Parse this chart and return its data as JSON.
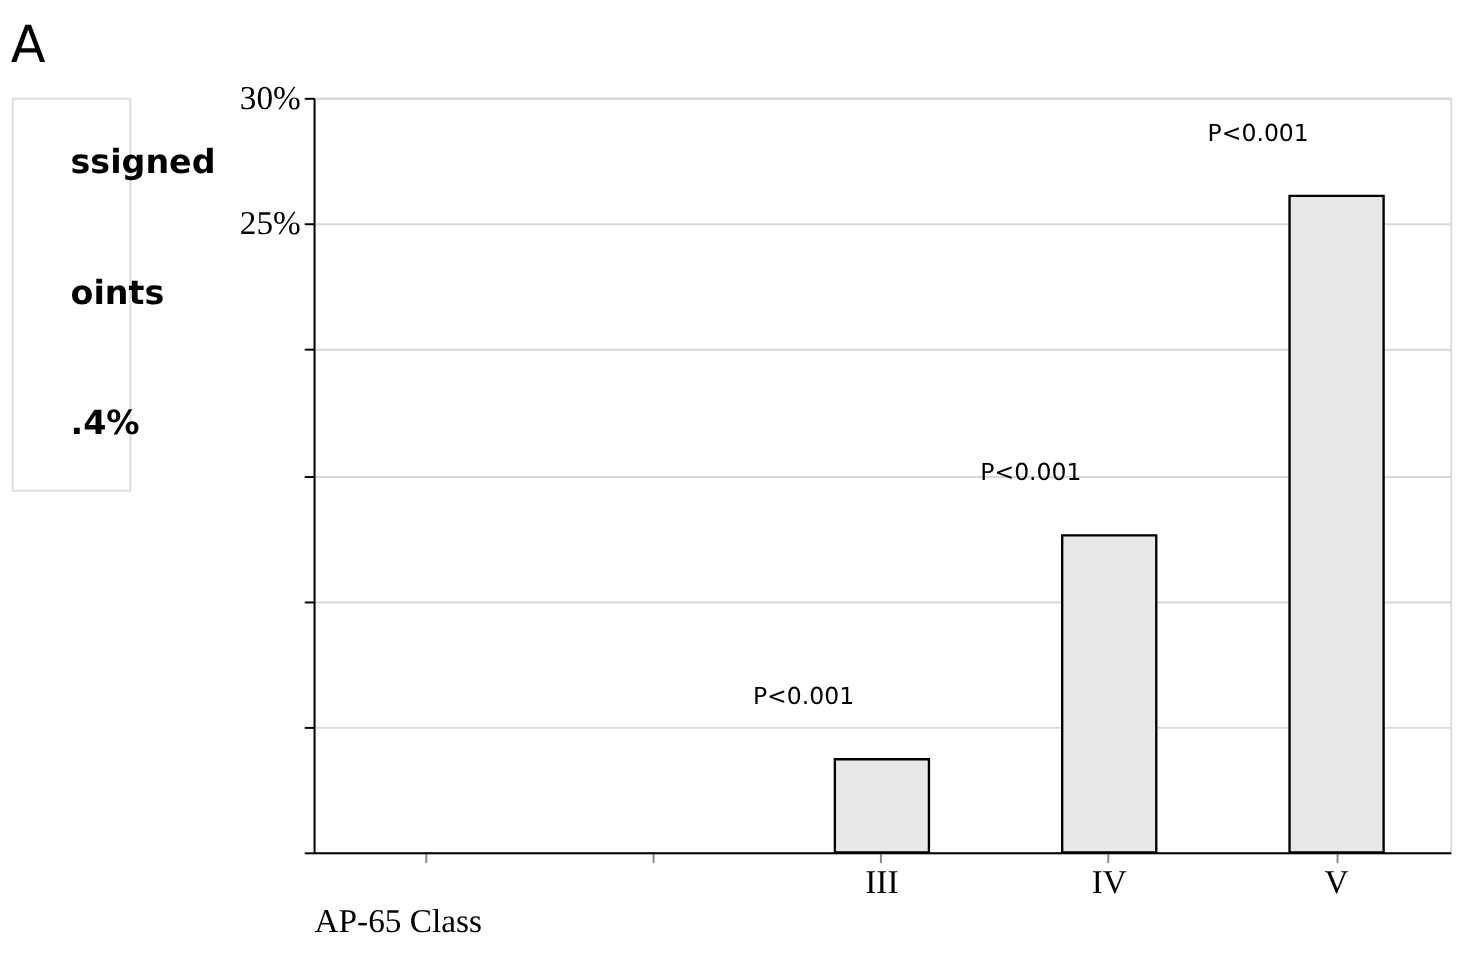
{
  "chart_data": {
    "type": "bar",
    "title": "A",
    "xlabel": "AP-65 Class",
    "categories": [
      null,
      null,
      "III",
      "IV",
      "V"
    ],
    "values": [
      null,
      null,
      3.7,
      12.6,
      26.1
    ],
    "color": "#e8e8e8",
    "ylim": [
      0,
      30
    ],
    "yticks": [
      {
        "value": 0,
        "label": null
      },
      {
        "value": 5,
        "label": null
      },
      {
        "value": 10,
        "label": null
      },
      {
        "value": 15,
        "label": null
      },
      {
        "value": 20,
        "label": null
      },
      {
        "value": 25,
        "label": "25%"
      },
      {
        "value": 30,
        "label": "30%"
      }
    ],
    "grid": "y",
    "annotations": [
      "P<0.001",
      "P<0.001",
      "P<0.001",
      "ssigned",
      "oints",
      ".4%"
    ]
  }
}
